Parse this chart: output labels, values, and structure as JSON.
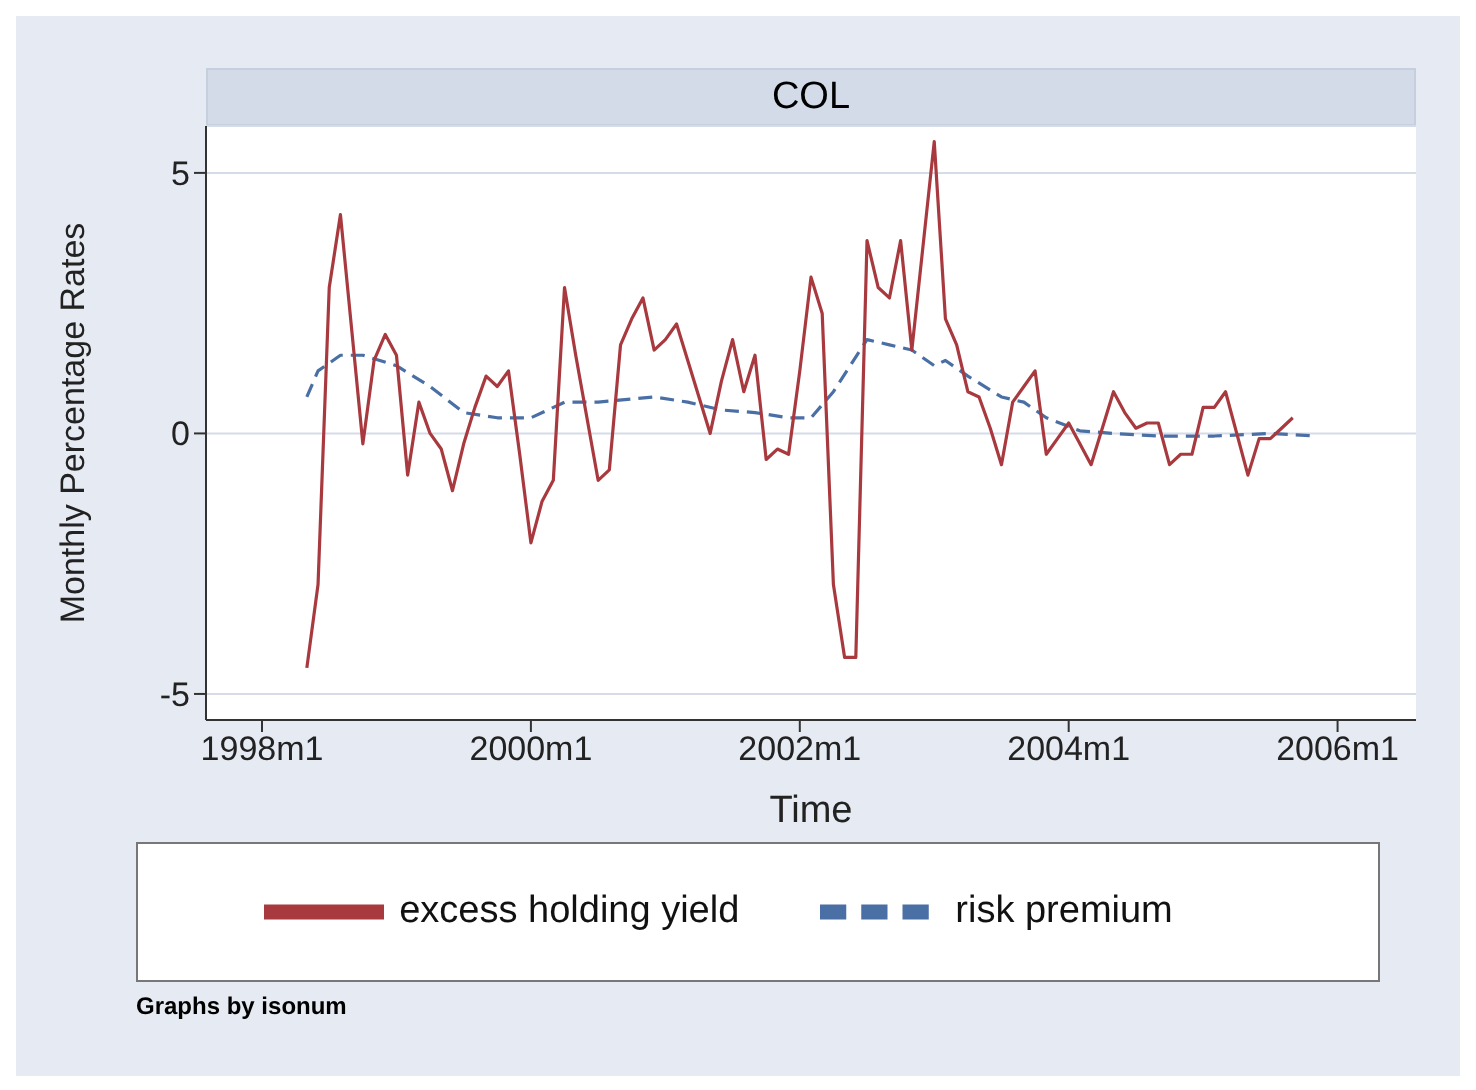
{
  "chart_data": {
    "type": "line",
    "title": "COL",
    "xlabel": "Time",
    "ylabel": "Monthly Percentage Rates",
    "annotations": [
      "Graphs by isonum"
    ],
    "xlim": [
      "1997-08",
      "2006-08"
    ],
    "ylim": [
      -5.5,
      5.9
    ],
    "yticks": [
      -5,
      0,
      5
    ],
    "xticks": [
      {
        "value": "1998-01",
        "label": "1998m1"
      },
      {
        "value": "2000-01",
        "label": "2000m1"
      },
      {
        "value": "2002-01",
        "label": "2002m1"
      },
      {
        "value": "2004-01",
        "label": "2004m1"
      },
      {
        "value": "2006-01",
        "label": "2006m1"
      }
    ],
    "grid": "y",
    "legend": "bottom",
    "series": [
      {
        "name": "risk premium",
        "color": "#4a6fa5",
        "line_style": "dashed",
        "x": [
          "1998-05",
          "1998-06",
          "1998-08",
          "1998-10",
          "1999-01",
          "1999-04",
          "1999-07",
          "1999-10",
          "2000-01",
          "2000-04",
          "2000-07",
          "2000-12",
          "2001-03",
          "2001-06",
          "2001-09",
          "2001-12",
          "2002-02",
          "2002-04",
          "2002-07",
          "2002-09",
          "2002-11",
          "2003-01",
          "2003-02",
          "2003-04",
          "2003-07",
          "2003-09",
          "2003-11",
          "2004-02",
          "2004-05",
          "2004-09",
          "2005-02",
          "2005-07",
          "2005-11"
        ],
        "values": [
          0.7,
          1.2,
          1.5,
          1.5,
          1.3,
          0.9,
          0.4,
          0.3,
          0.3,
          0.6,
          0.6,
          0.7,
          0.6,
          0.45,
          0.4,
          0.3,
          0.3,
          0.8,
          1.8,
          1.7,
          1.6,
          1.3,
          1.4,
          1.1,
          0.7,
          0.6,
          0.3,
          0.05,
          0.0,
          -0.05,
          -0.05,
          0.0,
          -0.05
        ]
      },
      {
        "name": "excess holding yield",
        "color": "#a83a3f",
        "line_style": "solid",
        "x": [
          "1998-05",
          "1998-06",
          "1998-07",
          "1998-08",
          "1998-09",
          "1998-10",
          "1998-11",
          "1998-12",
          "1999-01",
          "1999-02",
          "1999-03",
          "1999-04",
          "1999-05",
          "1999-06",
          "1999-07",
          "1999-08",
          "1999-09",
          "1999-10",
          "1999-11",
          "1999-12",
          "2000-01",
          "2000-02",
          "2000-03",
          "2000-04",
          "2000-05",
          "2000-06",
          "2000-07",
          "2000-08",
          "2000-09",
          "2000-10",
          "2000-11",
          "2000-12",
          "2001-01",
          "2001-02",
          "2001-03",
          "2001-04",
          "2001-05",
          "2001-06",
          "2001-07",
          "2001-08",
          "2001-09",
          "2001-10",
          "2001-11",
          "2001-12",
          "2002-01",
          "2002-02",
          "2002-03",
          "2002-04",
          "2002-05",
          "2002-06",
          "2002-07",
          "2002-08",
          "2002-09",
          "2002-10",
          "2002-11",
          "2002-12",
          "2003-01",
          "2003-02",
          "2003-03",
          "2003-04",
          "2003-05",
          "2003-06",
          "2003-07",
          "2003-08",
          "2003-09",
          "2003-10",
          "2003-11",
          "2003-12",
          "2004-01",
          "2004-02",
          "2004-03",
          "2004-04",
          "2004-05",
          "2004-06",
          "2004-07",
          "2004-08",
          "2004-09",
          "2004-10",
          "2004-11",
          "2004-12",
          "2005-01",
          "2005-02",
          "2005-03",
          "2005-04",
          "2005-05",
          "2005-06",
          "2005-07",
          "2005-08",
          "2005-09"
        ],
        "values": [
          -4.5,
          -2.9,
          2.8,
          4.2,
          2.0,
          -0.2,
          1.4,
          1.9,
          1.5,
          -0.8,
          0.6,
          0.0,
          -0.3,
          -1.1,
          -0.2,
          0.5,
          1.1,
          0.9,
          1.2,
          -0.4,
          -2.1,
          -1.3,
          -0.9,
          2.8,
          1.5,
          0.3,
          -0.9,
          -0.7,
          1.7,
          2.2,
          2.6,
          1.6,
          1.8,
          2.1,
          1.4,
          0.7,
          0.0,
          1.0,
          1.8,
          0.8,
          1.5,
          -0.5,
          -0.3,
          -0.4,
          1.2,
          3.0,
          2.3,
          -2.9,
          -4.3,
          -4.3,
          3.7,
          2.8,
          2.6,
          3.7,
          1.6,
          3.6,
          5.6,
          2.2,
          1.7,
          0.8,
          0.7,
          0.1,
          -0.6,
          0.6,
          0.9,
          1.2,
          -0.4,
          -0.1,
          0.2,
          -0.2,
          -0.6,
          0.1,
          0.8,
          0.4,
          0.1,
          0.2,
          0.2,
          -0.6,
          -0.4,
          -0.4,
          0.5,
          0.5,
          0.8,
          0.0,
          -0.8,
          -0.1,
          -0.1,
          0.1,
          0.3
        ]
      }
    ]
  }
}
